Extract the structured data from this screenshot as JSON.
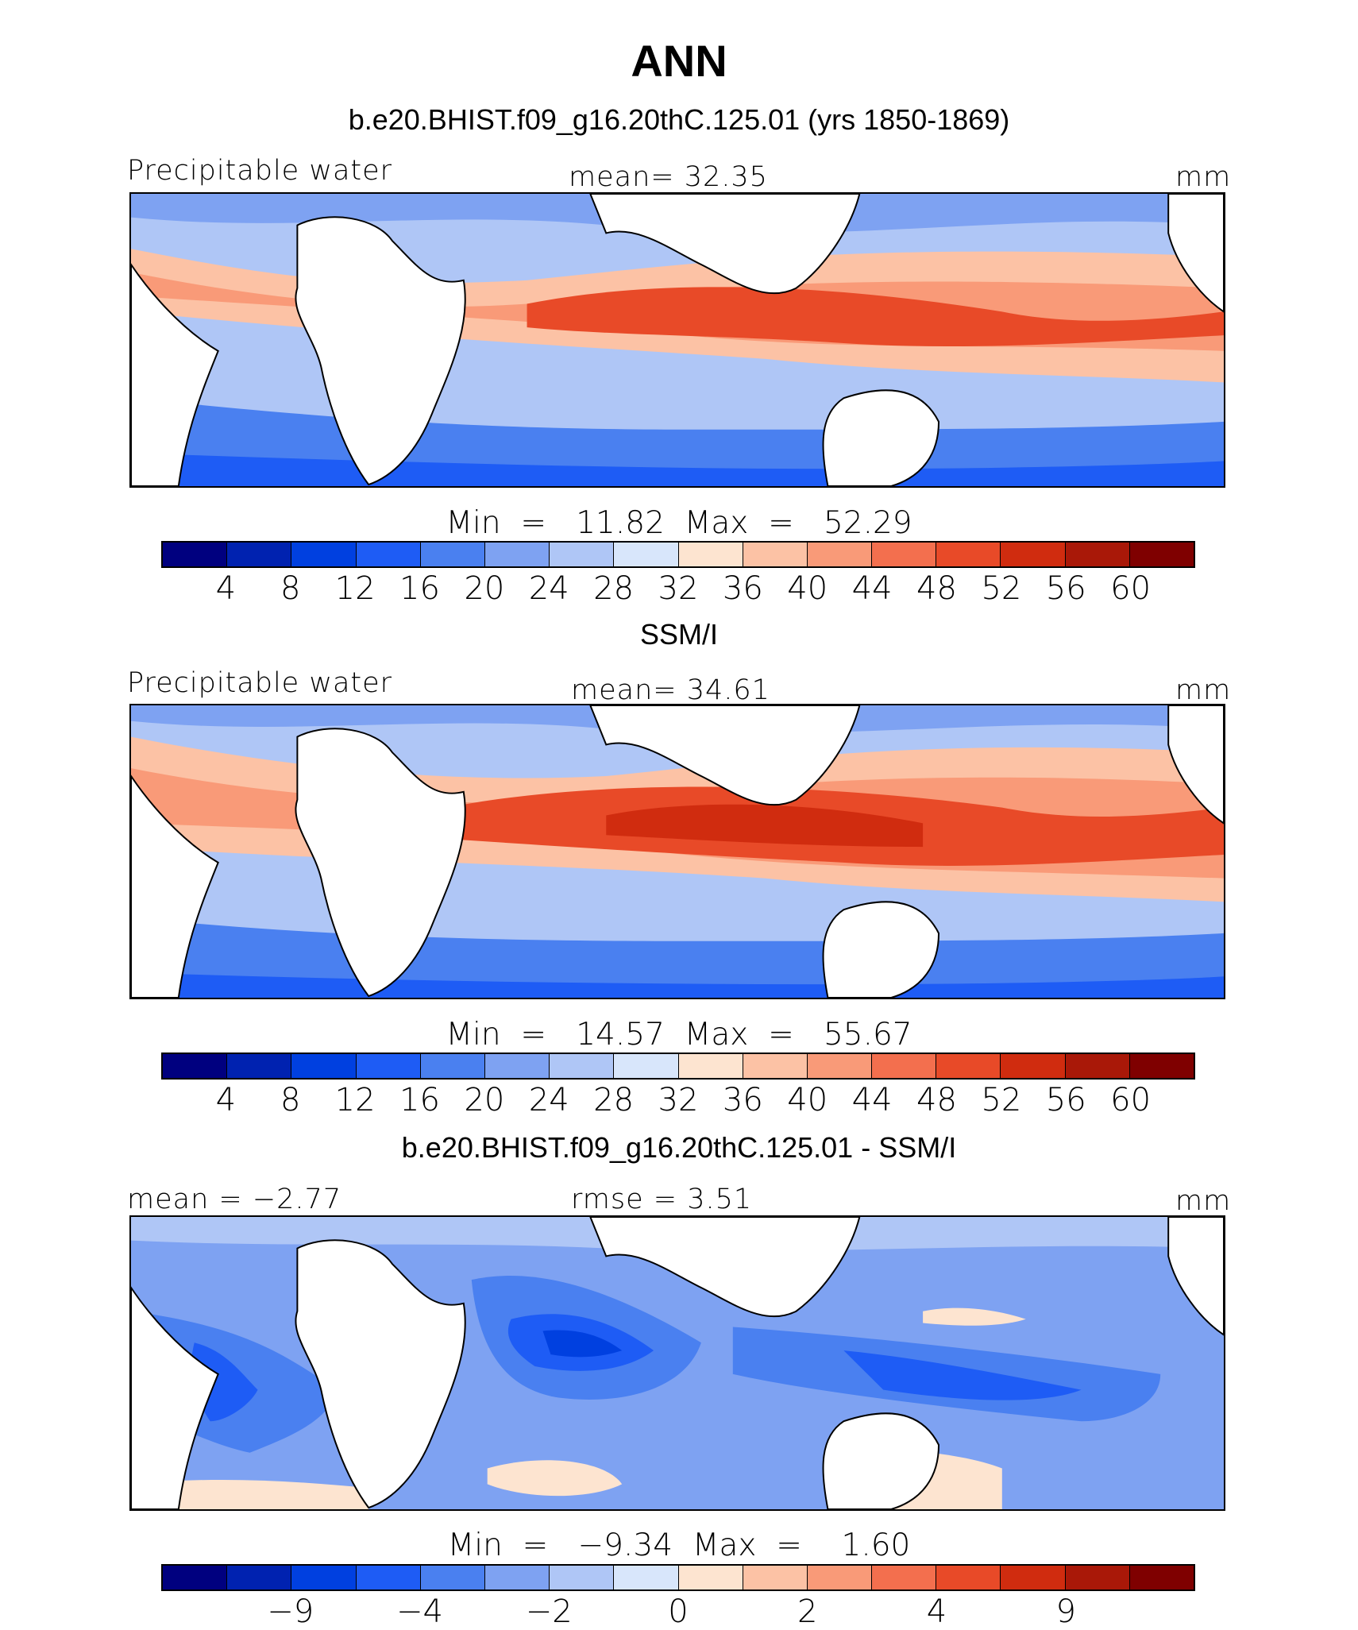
{
  "title": "ANN",
  "colors": [
    "#00007f",
    "#0022b0",
    "#0040e0",
    "#1e5cf5",
    "#4a80f0",
    "#7ea2f2",
    "#afc6f6",
    "#d8e6fb",
    "#fde4d0",
    "#fcc2a5",
    "#f99a78",
    "#f36f4e",
    "#e84a28",
    "#d02c0f",
    "#a91808",
    "#7f0000"
  ],
  "land_color": "#ffffff",
  "panels": [
    {
      "subtitle": "b.e20.BHIST.f09_g16.20thC.125.01 (yrs 1850-1869)",
      "left_label": "Precipitable water",
      "center_label": "mean=   32.35",
      "right_label": "mm",
      "minmax": "Min  =   11.82  Max  =   52.29",
      "ticks": [
        "4",
        "8",
        "12",
        "16",
        "20",
        "24",
        "28",
        "32",
        "36",
        "40",
        "44",
        "48",
        "52",
        "56",
        "60"
      ]
    },
    {
      "subtitle": "SSM/I",
      "left_label": "Precipitable water",
      "center_label": "mean=   34.61",
      "right_label": "mm",
      "minmax": "Min  =   14.57  Max  =   55.67",
      "ticks": [
        "4",
        "8",
        "12",
        "16",
        "20",
        "24",
        "28",
        "32",
        "36",
        "40",
        "44",
        "48",
        "52",
        "56",
        "60"
      ]
    },
    {
      "subtitle": "b.e20.BHIST.f09_g16.20thC.125.01 - SSM/I",
      "left_label": "mean  =   −2.77",
      "center_label": "rmse  =    3.51",
      "right_label": "mm",
      "minmax": "Min  =   −9.34  Max  =    1.60",
      "ticks": [
        "−9",
        "−4",
        "−2",
        "0",
        "2",
        "4",
        "9"
      ]
    }
  ]
}
